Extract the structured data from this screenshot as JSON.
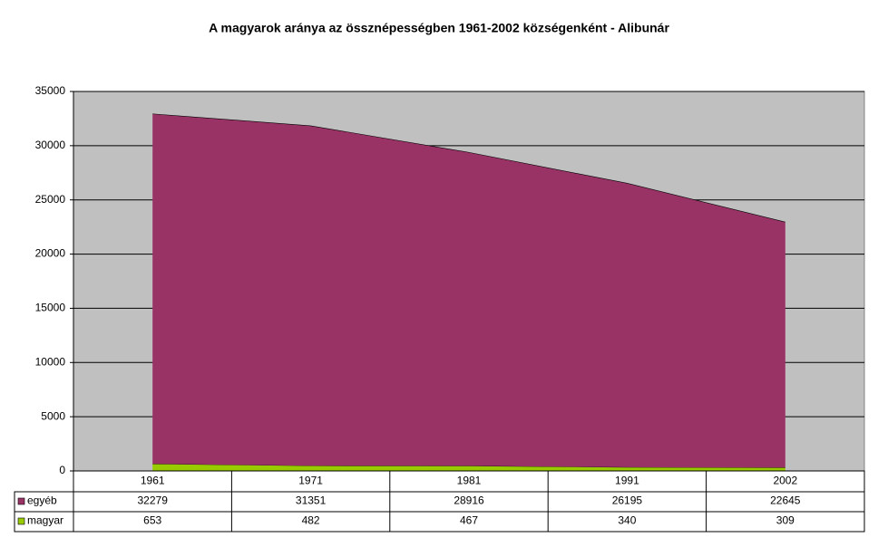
{
  "chart_data": {
    "type": "stacked-area",
    "title": "A magyarok aránya az össznépességben 1961-2002 községenként - Alibunár",
    "categories": [
      "1961",
      "1971",
      "1981",
      "1991",
      "2002"
    ],
    "series": [
      {
        "name": "egyéb",
        "color": "#993366",
        "values": [
          32279,
          31351,
          28916,
          26195,
          22645
        ]
      },
      {
        "name": "magyar",
        "color": "#99cc00",
        "values": [
          653,
          482,
          467,
          340,
          309
        ]
      }
    ],
    "ylim": [
      0,
      35000
    ],
    "yticks": [
      0,
      5000,
      10000,
      15000,
      20000,
      25000,
      30000,
      35000
    ],
    "grid": true,
    "plot_background": "#c0c0c0"
  }
}
